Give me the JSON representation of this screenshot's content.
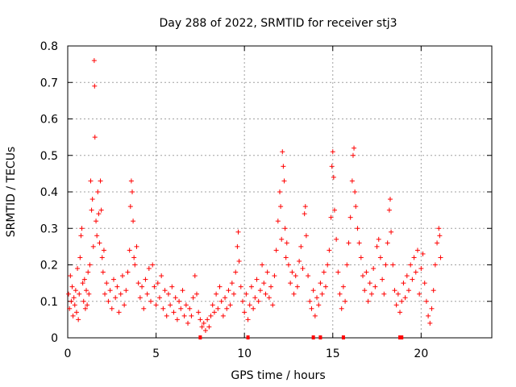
{
  "chart_data": {
    "type": "scatter",
    "title": "Day 288 of 2022, SRMTID for receiver stj3",
    "xlabel": "GPS time / hours",
    "ylabel": "SRMTID / TECUs",
    "xlim": [
      0,
      24
    ],
    "ylim": [
      0,
      0.8
    ],
    "x_ticks": [
      0,
      5,
      10,
      15,
      20
    ],
    "y_ticks": [
      0,
      0.1,
      0.2,
      0.3,
      0.4,
      0.5,
      0.6,
      0.7,
      0.8
    ],
    "x_tick_labels": [
      "0",
      "5",
      "10",
      "15",
      "20"
    ],
    "y_tick_labels": [
      "0",
      "0.1",
      "0.2",
      "0.3",
      "0.4",
      "0.5",
      "0.6",
      "0.7",
      "0.8"
    ],
    "grid": true,
    "marker": "+",
    "color": "#ff0000",
    "series": [
      {
        "name": "SRMTID",
        "points": [
          [
            0.05,
            0.12
          ],
          [
            0.1,
            0.08
          ],
          [
            0.15,
            0.17
          ],
          [
            0.2,
            0.1
          ],
          [
            0.25,
            0.14
          ],
          [
            0.3,
            0.06
          ],
          [
            0.35,
            0.11
          ],
          [
            0.4,
            0.09
          ],
          [
            0.45,
            0.13
          ],
          [
            0.5,
            0.07
          ],
          [
            0.55,
            0.19
          ],
          [
            0.6,
            0.05
          ],
          [
            0.65,
            0.12
          ],
          [
            0.7,
            0.22
          ],
          [
            0.75,
            0.28
          ],
          [
            0.8,
            0.3
          ],
          [
            0.85,
            0.15
          ],
          [
            0.9,
            0.1
          ],
          [
            0.95,
            0.16
          ],
          [
            1.0,
            0.08
          ],
          [
            1.05,
            0.13
          ],
          [
            1.1,
            0.09
          ],
          [
            1.15,
            0.18
          ],
          [
            1.2,
            0.12
          ],
          [
            1.25,
            0.2
          ],
          [
            1.3,
            0.43
          ],
          [
            1.35,
            0.35
          ],
          [
            1.4,
            0.38
          ],
          [
            1.45,
            0.25
          ],
          [
            1.5,
            0.76
          ],
          [
            1.52,
            0.69
          ],
          [
            1.54,
            0.55
          ],
          [
            1.6,
            0.32
          ],
          [
            1.65,
            0.28
          ],
          [
            1.7,
            0.4
          ],
          [
            1.75,
            0.34
          ],
          [
            1.8,
            0.26
          ],
          [
            1.85,
            0.43
          ],
          [
            1.9,
            0.35
          ],
          [
            1.95,
            0.22
          ],
          [
            2.0,
            0.18
          ],
          [
            2.05,
            0.24
          ],
          [
            2.1,
            0.12
          ],
          [
            2.2,
            0.15
          ],
          [
            2.3,
            0.1
          ],
          [
            2.4,
            0.13
          ],
          [
            2.5,
            0.08
          ],
          [
            2.6,
            0.16
          ],
          [
            2.7,
            0.11
          ],
          [
            2.8,
            0.14
          ],
          [
            2.9,
            0.07
          ],
          [
            3.0,
            0.12
          ],
          [
            3.1,
            0.17
          ],
          [
            3.2,
            0.09
          ],
          [
            3.3,
            0.13
          ],
          [
            3.4,
            0.18
          ],
          [
            3.5,
            0.24
          ],
          [
            3.55,
            0.36
          ],
          [
            3.6,
            0.43
          ],
          [
            3.65,
            0.4
          ],
          [
            3.7,
            0.32
          ],
          [
            3.75,
            0.22
          ],
          [
            3.8,
            0.2
          ],
          [
            3.9,
            0.25
          ],
          [
            4.0,
            0.15
          ],
          [
            4.1,
            0.11
          ],
          [
            4.2,
            0.14
          ],
          [
            4.3,
            0.08
          ],
          [
            4.4,
            0.16
          ],
          [
            4.5,
            0.12
          ],
          [
            4.6,
            0.19
          ],
          [
            4.7,
            0.1
          ],
          [
            4.8,
            0.2
          ],
          [
            4.9,
            0.14
          ],
          [
            5.0,
            0.09
          ],
          [
            5.1,
            0.15
          ],
          [
            5.2,
            0.11
          ],
          [
            5.3,
            0.17
          ],
          [
            5.4,
            0.08
          ],
          [
            5.5,
            0.13
          ],
          [
            5.6,
            0.06
          ],
          [
            5.7,
            0.12
          ],
          [
            5.8,
            0.09
          ],
          [
            5.9,
            0.14
          ],
          [
            6.0,
            0.07
          ],
          [
            6.1,
            0.11
          ],
          [
            6.2,
            0.05
          ],
          [
            6.3,
            0.1
          ],
          [
            6.4,
            0.08
          ],
          [
            6.5,
            0.13
          ],
          [
            6.6,
            0.06
          ],
          [
            6.7,
            0.09
          ],
          [
            6.8,
            0.04
          ],
          [
            6.9,
            0.08
          ],
          [
            7.0,
            0.06
          ],
          [
            7.1,
            0.11
          ],
          [
            7.2,
            0.17
          ],
          [
            7.3,
            0.12
          ],
          [
            7.4,
            0.07
          ],
          [
            7.5,
            0.05
          ],
          [
            7.6,
            0.03
          ],
          [
            7.7,
            0.04
          ],
          [
            7.8,
            0.02
          ],
          [
            7.9,
            0.05
          ],
          [
            8.0,
            0.03
          ],
          [
            8.1,
            0.06
          ],
          [
            8.2,
            0.09
          ],
          [
            8.3,
            0.07
          ],
          [
            8.4,
            0.12
          ],
          [
            8.5,
            0.08
          ],
          [
            8.6,
            0.14
          ],
          [
            8.7,
            0.1
          ],
          [
            8.8,
            0.06
          ],
          [
            8.9,
            0.11
          ],
          [
            9.0,
            0.08
          ],
          [
            9.1,
            0.13
          ],
          [
            9.2,
            0.09
          ],
          [
            9.3,
            0.15
          ],
          [
            9.4,
            0.12
          ],
          [
            9.5,
            0.18
          ],
          [
            9.6,
            0.25
          ],
          [
            9.65,
            0.29
          ],
          [
            9.7,
            0.21
          ],
          [
            9.8,
            0.14
          ],
          [
            9.9,
            0.1
          ],
          [
            10.0,
            0.07
          ],
          [
            10.1,
            0.12
          ],
          [
            10.2,
            0.05
          ],
          [
            10.3,
            0.09
          ],
          [
            10.4,
            0.14
          ],
          [
            10.5,
            0.08
          ],
          [
            10.6,
            0.11
          ],
          [
            10.7,
            0.16
          ],
          [
            10.8,
            0.1
          ],
          [
            10.9,
            0.13
          ],
          [
            11.0,
            0.2
          ],
          [
            11.1,
            0.15
          ],
          [
            11.2,
            0.12
          ],
          [
            11.3,
            0.18
          ],
          [
            11.4,
            0.11
          ],
          [
            11.5,
            0.14
          ],
          [
            11.6,
            0.09
          ],
          [
            11.7,
            0.17
          ],
          [
            11.8,
            0.24
          ],
          [
            11.9,
            0.32
          ],
          [
            12.0,
            0.4
          ],
          [
            12.05,
            0.36
          ],
          [
            12.1,
            0.27
          ],
          [
            12.15,
            0.51
          ],
          [
            12.2,
            0.47
          ],
          [
            12.25,
            0.43
          ],
          [
            12.3,
            0.3
          ],
          [
            12.35,
            0.22
          ],
          [
            12.4,
            0.26
          ],
          [
            12.5,
            0.2
          ],
          [
            12.6,
            0.15
          ],
          [
            12.7,
            0.18
          ],
          [
            12.8,
            0.12
          ],
          [
            12.9,
            0.17
          ],
          [
            13.0,
            0.14
          ],
          [
            13.1,
            0.21
          ],
          [
            13.2,
            0.25
          ],
          [
            13.3,
            0.19
          ],
          [
            13.4,
            0.34
          ],
          [
            13.45,
            0.36
          ],
          [
            13.5,
            0.28
          ],
          [
            13.6,
            0.17
          ],
          [
            13.7,
            0.1
          ],
          [
            13.8,
            0.08
          ],
          [
            13.9,
            0.13
          ],
          [
            14.0,
            0.06
          ],
          [
            14.1,
            0.11
          ],
          [
            14.2,
            0.09
          ],
          [
            14.3,
            0.15
          ],
          [
            14.4,
            0.12
          ],
          [
            14.5,
            0.18
          ],
          [
            14.6,
            0.14
          ],
          [
            14.7,
            0.2
          ],
          [
            14.8,
            0.24
          ],
          [
            14.9,
            0.33
          ],
          [
            14.95,
            0.47
          ],
          [
            15.0,
            0.51
          ],
          [
            15.05,
            0.44
          ],
          [
            15.1,
            0.35
          ],
          [
            15.2,
            0.27
          ],
          [
            15.3,
            0.18
          ],
          [
            15.4,
            0.12
          ],
          [
            15.5,
            0.08
          ],
          [
            15.6,
            0.14
          ],
          [
            15.7,
            0.1
          ],
          [
            15.8,
            0.2
          ],
          [
            15.9,
            0.26
          ],
          [
            16.0,
            0.33
          ],
          [
            16.1,
            0.43
          ],
          [
            16.15,
            0.5
          ],
          [
            16.2,
            0.52
          ],
          [
            16.25,
            0.4
          ],
          [
            16.3,
            0.36
          ],
          [
            16.4,
            0.3
          ],
          [
            16.5,
            0.26
          ],
          [
            16.6,
            0.22
          ],
          [
            16.7,
            0.17
          ],
          [
            16.8,
            0.13
          ],
          [
            16.9,
            0.18
          ],
          [
            17.0,
            0.1
          ],
          [
            17.1,
            0.15
          ],
          [
            17.2,
            0.12
          ],
          [
            17.3,
            0.19
          ],
          [
            17.4,
            0.14
          ],
          [
            17.5,
            0.25
          ],
          [
            17.6,
            0.27
          ],
          [
            17.7,
            0.22
          ],
          [
            17.8,
            0.16
          ],
          [
            17.9,
            0.12
          ],
          [
            18.0,
            0.2
          ],
          [
            18.1,
            0.26
          ],
          [
            18.2,
            0.35
          ],
          [
            18.25,
            0.38
          ],
          [
            18.3,
            0.29
          ],
          [
            18.4,
            0.2
          ],
          [
            18.5,
            0.13
          ],
          [
            18.6,
            0.09
          ],
          [
            18.7,
            0.12
          ],
          [
            18.8,
            0.07
          ],
          [
            18.9,
            0.1
          ],
          [
            19.0,
            0.15
          ],
          [
            19.1,
            0.11
          ],
          [
            19.2,
            0.17
          ],
          [
            19.3,
            0.13
          ],
          [
            19.4,
            0.2
          ],
          [
            19.5,
            0.16
          ],
          [
            19.6,
            0.22
          ],
          [
            19.7,
            0.18
          ],
          [
            19.8,
            0.24
          ],
          [
            19.9,
            0.12
          ],
          [
            20.0,
            0.19
          ],
          [
            20.1,
            0.23
          ],
          [
            20.2,
            0.15
          ],
          [
            20.3,
            0.1
          ],
          [
            20.4,
            0.06
          ],
          [
            20.5,
            0.04
          ],
          [
            20.6,
            0.08
          ],
          [
            20.7,
            0.13
          ],
          [
            20.8,
            0.2
          ],
          [
            20.9,
            0.26
          ],
          [
            21.0,
            0.3
          ],
          [
            21.05,
            0.28
          ],
          [
            21.1,
            0.22
          ]
        ]
      }
    ],
    "flag_markers": {
      "y": 0,
      "x": [
        7.5,
        10.2,
        13.9,
        14.3,
        15.6,
        18.8,
        18.9
      ]
    }
  }
}
